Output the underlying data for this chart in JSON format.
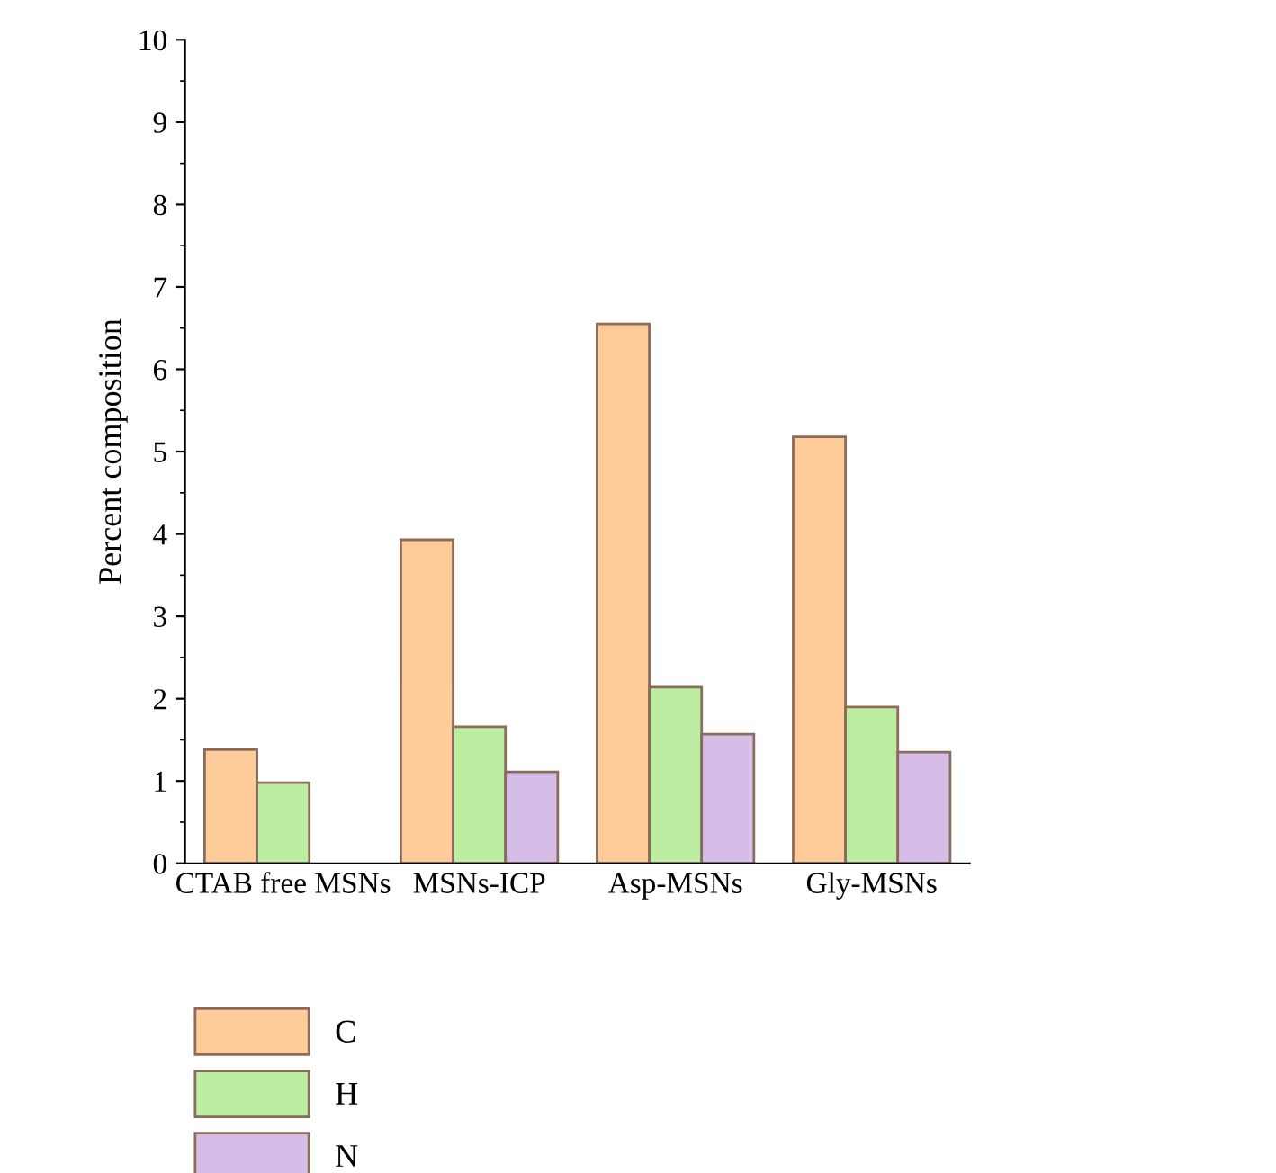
{
  "chart_data": {
    "type": "bar",
    "ylabel": "Percent composition",
    "categories": [
      "CTAB free MSNs",
      "MSNs-ICP",
      "Asp-MSNs",
      "Gly-MSNs"
    ],
    "series": [
      {
        "name": "C",
        "color": "#ffcc99",
        "values": [
          1.38,
          3.93,
          6.55,
          5.18
        ]
      },
      {
        "name": "H",
        "color": "#bbeea0",
        "values": [
          0.98,
          1.66,
          2.14,
          1.9
        ]
      },
      {
        "name": "N",
        "color": "#d5bde8",
        "values": [
          null,
          1.11,
          1.57,
          1.35
        ]
      }
    ],
    "ylim": [
      0,
      10
    ],
    "yticks": [
      0,
      1,
      2,
      3,
      4,
      5,
      6,
      7,
      8,
      9,
      10
    ],
    "grid": false,
    "legend": "bottom"
  }
}
